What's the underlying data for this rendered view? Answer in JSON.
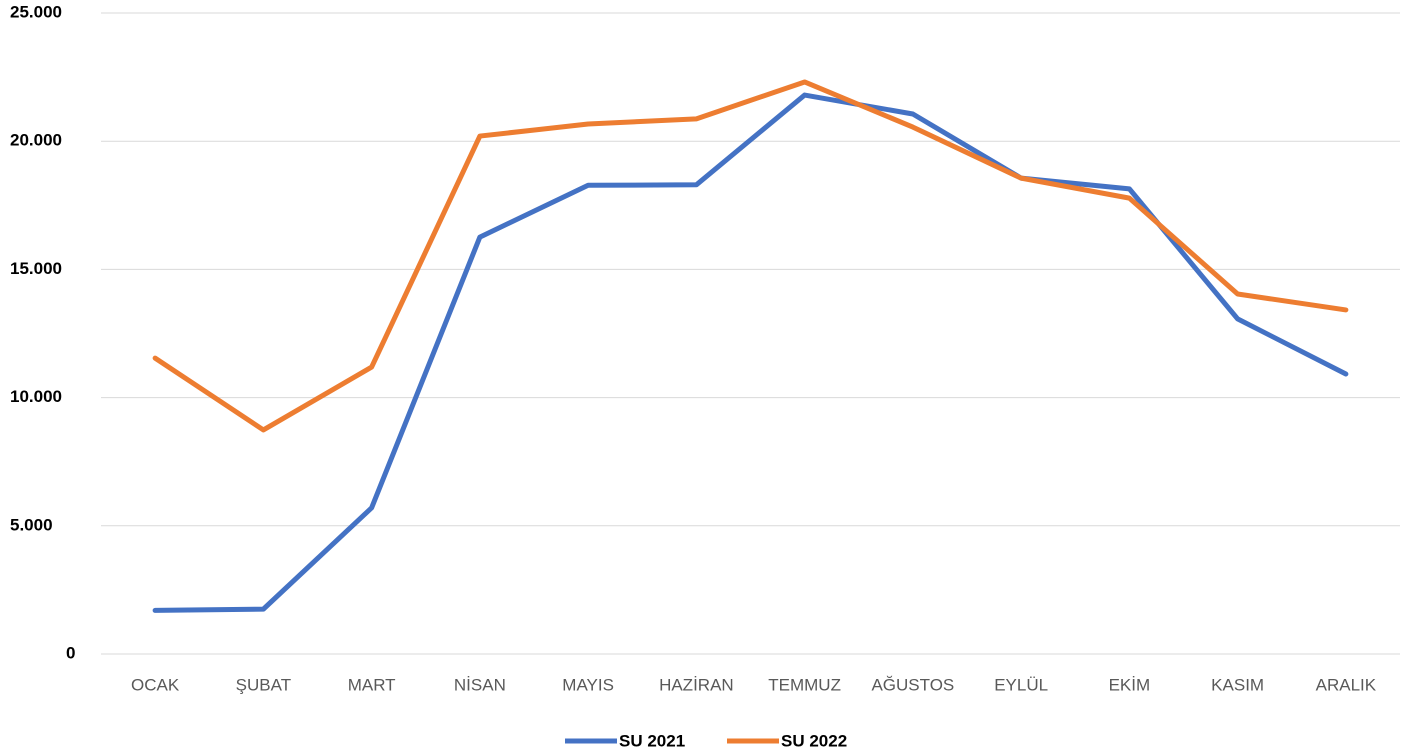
{
  "chart_data": {
    "type": "line",
    "categories": [
      "OCAK",
      "ŞUBAT",
      "MART",
      "NİSAN",
      "MAYIS",
      "HAZİRAN",
      "TEMMUZ",
      "AĞUSTOS",
      "EYLÜL",
      "EKİM",
      "KASIM",
      "ARALIK"
    ],
    "series": [
      {
        "name": "SU 2021",
        "color": "#4472c4",
        "values": [
          1700,
          1750,
          5700,
          16260,
          18280,
          18300,
          21800,
          21060,
          18560,
          18140,
          13070,
          10920
        ]
      },
      {
        "name": "SU 2022",
        "color": "#ed7d31",
        "values": [
          11540,
          8740,
          11190,
          20200,
          20670,
          20870,
          22310,
          20550,
          18560,
          17780,
          14040,
          13420
        ]
      }
    ],
    "ylim": [
      0,
      25000
    ],
    "yticks": [
      0,
      {
        "value": 5000,
        "label": "5.000"
      },
      {
        "value": 10000,
        "label": "10.000"
      },
      {
        "value": 15000,
        "label": "15.000"
      },
      {
        "value": 20000,
        "label": "20.000"
      },
      {
        "value": 25000,
        "label": "25.000"
      }
    ],
    "grid": true,
    "legend": "bottom"
  }
}
